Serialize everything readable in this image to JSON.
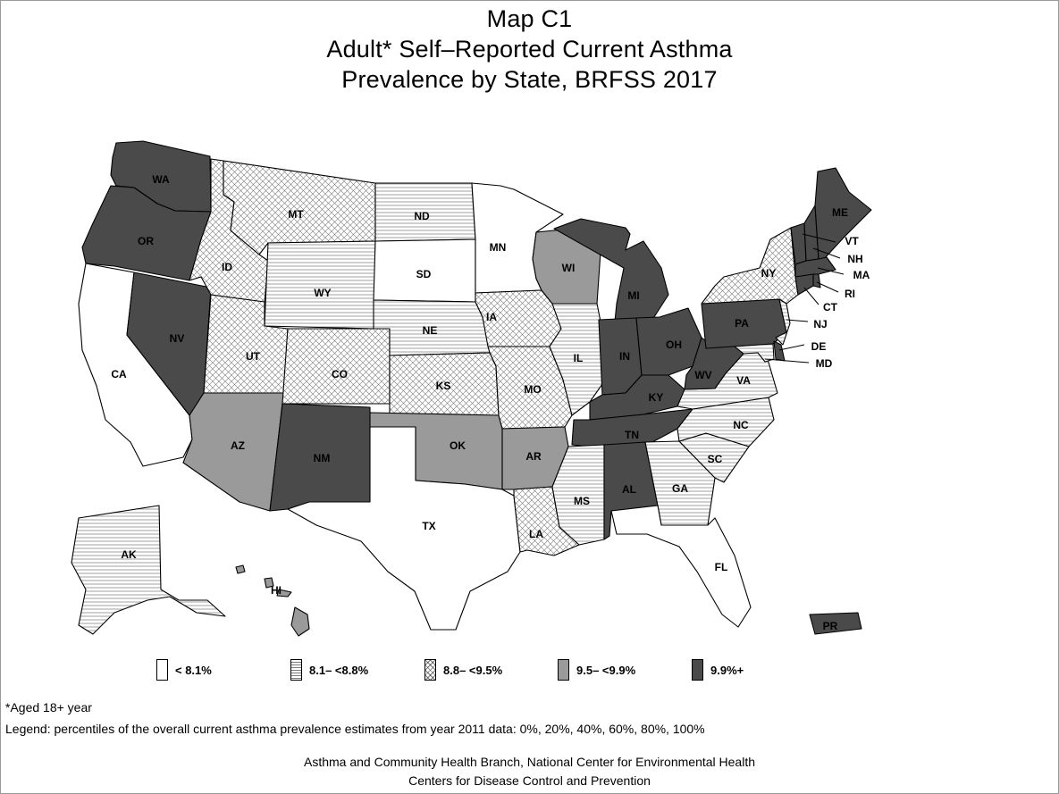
{
  "title": {
    "line1": "Map C1",
    "line2": "Adult* Self–Reported Current Asthma",
    "line3": "Prevalence  by State, BRFSS 2017"
  },
  "colors": {
    "cat1": "#ffffff",
    "cat2": "#ffffff",
    "cat3": "#ffffff",
    "cat4": "#9a9a9a",
    "cat5": "#4a4a4a",
    "stroke": "#000000",
    "hatch": "#6e6e6e"
  },
  "legend": [
    {
      "id": "cat1",
      "label": "< 8.1%",
      "pattern": "none"
    },
    {
      "id": "cat2",
      "label": "8.1– <8.8%",
      "pattern": "horizontal-lines"
    },
    {
      "id": "cat3",
      "label": "8.8– <9.5%",
      "pattern": "crosshatch"
    },
    {
      "id": "cat4",
      "label": "9.5– <9.9%",
      "pattern": "medium-gray"
    },
    {
      "id": "cat5",
      "label": "9.9%+",
      "pattern": "dark-gray"
    }
  ],
  "states": {
    "WA": "cat5",
    "OR": "cat5",
    "CA": "cat1",
    "NV": "cat5",
    "ID": "cat3",
    "MT": "cat3",
    "WY": "cat2",
    "UT": "cat3",
    "AZ": "cat4",
    "CO": "cat3",
    "NM": "cat5",
    "ND": "cat2",
    "SD": "cat1",
    "NE": "cat2",
    "KS": "cat3",
    "OK": "cat4",
    "TX": "cat1",
    "MN": "cat1",
    "IA": "cat3",
    "MO": "cat3",
    "AR": "cat4",
    "LA": "cat3",
    "WI": "cat4",
    "IL": "cat2",
    "MI": "cat5",
    "IN": "cat5",
    "OH": "cat5",
    "KY": "cat5",
    "TN": "cat5",
    "MS": "cat2",
    "AL": "cat5",
    "GA": "cat2",
    "FL": "cat1",
    "SC": "cat2",
    "NC": "cat2",
    "VA": "cat2",
    "WV": "cat5",
    "PA": "cat5",
    "NY": "cat3",
    "VT": "cat5",
    "NH": "cat5",
    "ME": "cat5",
    "MA": "cat5",
    "RI": "cat5",
    "CT": "cat5",
    "NJ": "cat2",
    "DE": "cat5",
    "MD": "cat2",
    "AK": "cat2",
    "HI": "cat4",
    "PR": "cat5"
  },
  "notes": {
    "aged": "*Aged 18+ year",
    "legend_note": "Legend: percentiles of the overall current asthma prevalence estimates from year 2011 data: 0%, 20%, 40%, 60%, 80%, 100%"
  },
  "credits": {
    "line1": "Asthma and Community Health Branch, National Center for Environmental Health",
    "line2": "Centers for Disease Control and Prevention"
  }
}
